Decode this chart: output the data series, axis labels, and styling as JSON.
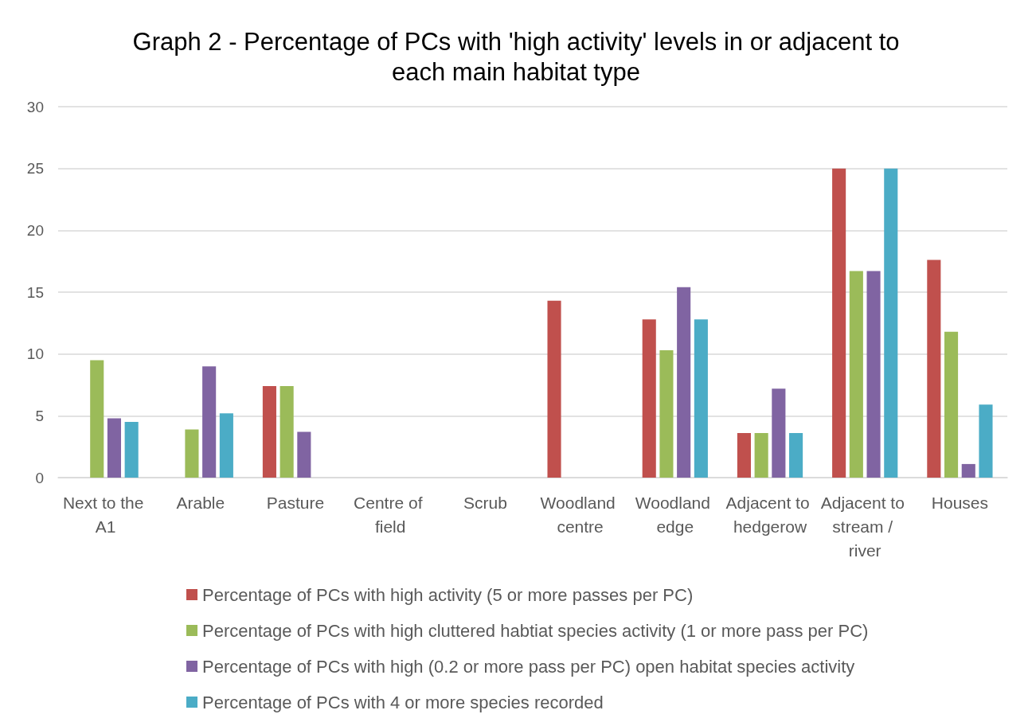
{
  "chart_data": {
    "type": "bar",
    "title": "Graph 2 - Percentage of PCs with 'high activity' levels in or adjacent to each main habitat type",
    "categories": [
      "Next to the A1",
      "Arable",
      "Pasture",
      "Centre of field",
      "Scrub",
      "Woodland centre",
      "Woodland edge",
      "Adjacent to hedgerow",
      "Adjacent to stream / river",
      "Houses"
    ],
    "series": [
      {
        "name": "Percentage of PCs with high activity (5 or more passes per PC)",
        "color": "#c0504d",
        "values": [
          0,
          0,
          7.4,
          0,
          0,
          14.3,
          12.8,
          3.6,
          25,
          17.6
        ]
      },
      {
        "name": "Percentage of PCs with high cluttered habtiat species activity (1 or more pass per PC)",
        "color": "#9bbb59",
        "values": [
          9.5,
          3.9,
          7.4,
          0,
          0,
          0,
          10.3,
          3.6,
          16.7,
          11.8
        ]
      },
      {
        "name": "Percentage of PCs with high (0.2 or more pass per PC) open habitat species activity",
        "color": "#8064a2",
        "values": [
          4.8,
          9.0,
          3.7,
          0,
          0,
          0,
          15.4,
          7.2,
          16.7,
          1.1
        ]
      },
      {
        "name": "Percentage of PCs with 4 or more species recorded",
        "color": "#4bacc6",
        "values": [
          4.5,
          5.2,
          0,
          0,
          0,
          0,
          12.8,
          3.6,
          25,
          5.9
        ]
      }
    ],
    "ylim": [
      0,
      30
    ],
    "yticks": [
      0,
      5,
      10,
      15,
      20,
      25,
      30
    ],
    "grid": "y",
    "legend": "bottom"
  }
}
